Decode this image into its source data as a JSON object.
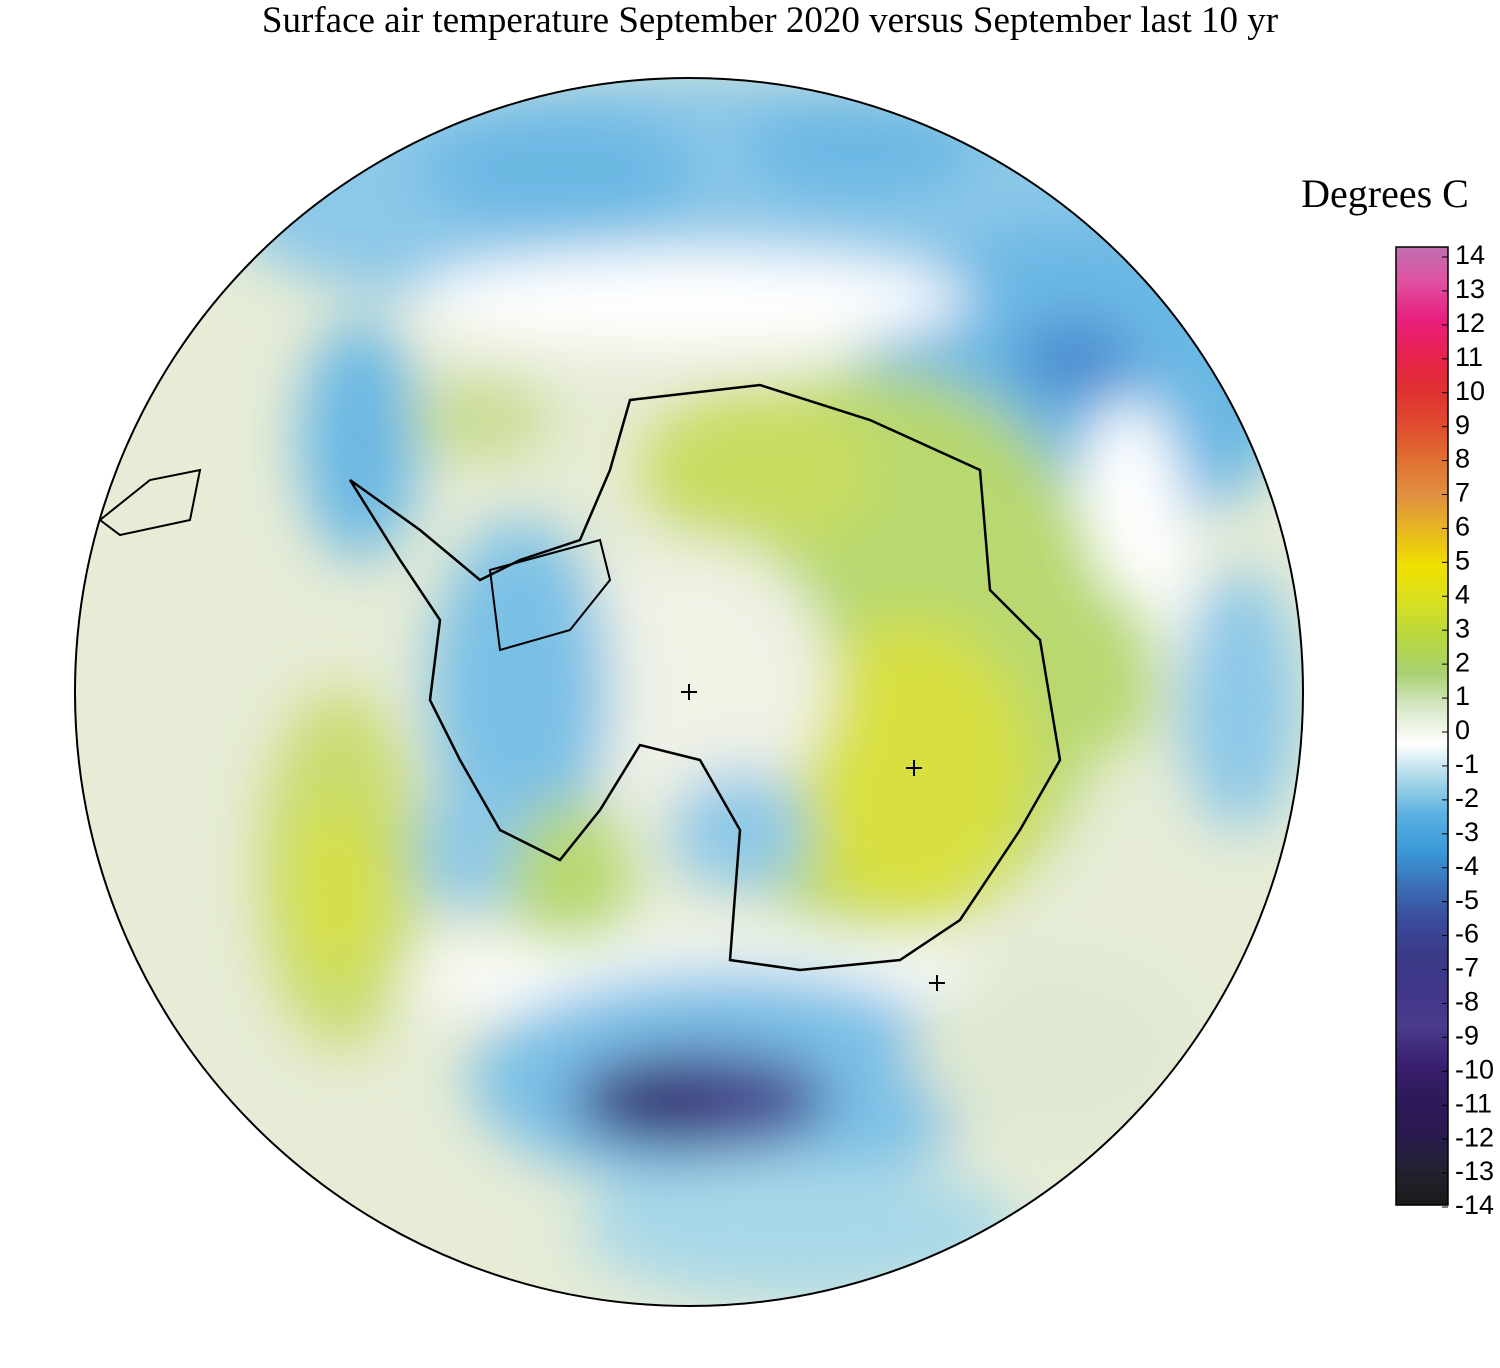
{
  "title": "Surface air temperature September 2020 versus September last 10 yr",
  "colorbar": {
    "label": "Degrees C",
    "range": [
      -14,
      14
    ],
    "ticks": [
      14,
      13,
      12,
      11,
      10,
      9,
      8,
      7,
      6,
      5,
      4,
      3,
      2,
      1,
      0,
      -1,
      -2,
      -3,
      -4,
      -5,
      -6,
      -7,
      -8,
      -9,
      -10,
      -11,
      -12,
      -13,
      -14
    ],
    "colors": [
      "#c070b0",
      "#e050a0",
      "#e82080",
      "#e82050",
      "#e03030",
      "#e04a30",
      "#e07030",
      "#e09040",
      "#e8b820",
      "#f0e000",
      "#d8e020",
      "#b8d840",
      "#a8d070",
      "#d8e8c8",
      "#ffffff",
      "#a8d8e8",
      "#5ab0e0",
      "#3a9ad8",
      "#3a70b8",
      "#3a4a9a",
      "#3a3a88",
      "#40368a",
      "#4a3a8a",
      "#3a2070",
      "#2e1a5a",
      "#2a1a50",
      "#222230",
      "#1a1a1a"
    ]
  }
}
